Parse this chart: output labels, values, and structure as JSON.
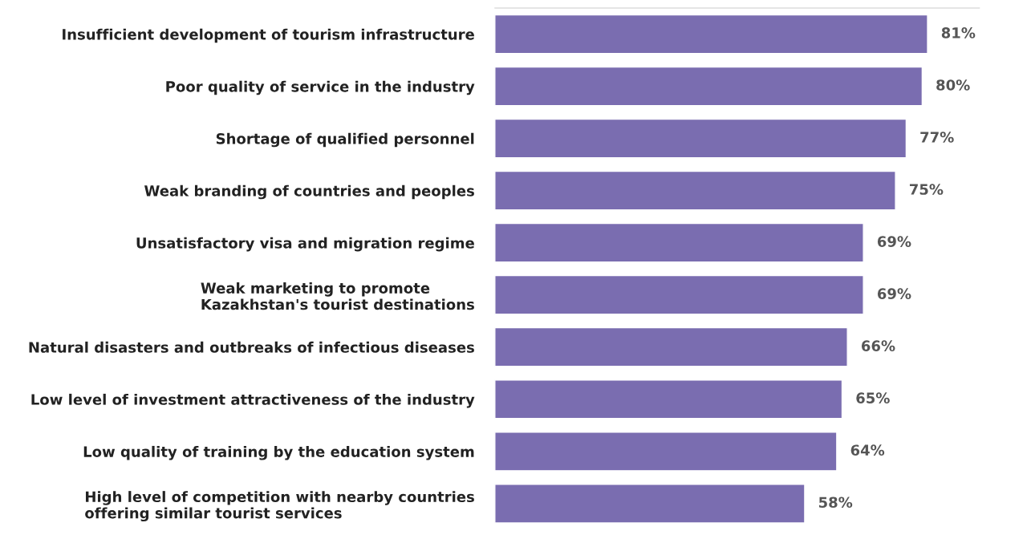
{
  "chart_data": {
    "type": "bar",
    "orientation": "horizontal",
    "categories": [
      "Insufficient development of tourism infrastructure",
      "Poor quality of service in the industry",
      "Shortage of qualified personnel",
      "Weak branding of countries and peoples",
      "Unsatisfactory visa and migration regime",
      "Weak marketing to promote\nKazakhstan's tourist destinations",
      "Natural disasters and outbreaks of infectious diseases",
      "Low level of investment attractiveness of the industry",
      "Low quality of training by the education system",
      "High level of competition with nearby countries\noffering similar tourist services"
    ],
    "values": [
      81,
      80,
      77,
      75,
      69,
      69,
      66,
      65,
      64,
      58
    ],
    "value_labels": [
      "81%",
      "80%",
      "77%",
      "75%",
      "69%",
      "69%",
      "66%",
      "65%",
      "64%",
      "58%"
    ],
    "color": "#7a6db0",
    "grid": false,
    "legend": false
  }
}
